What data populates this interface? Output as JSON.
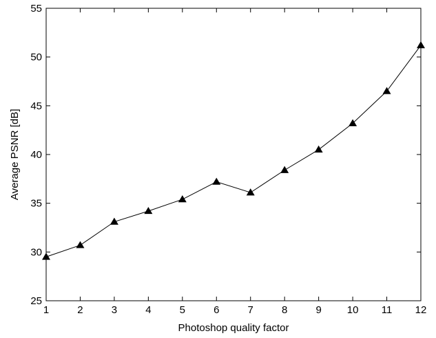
{
  "chart_data": {
    "type": "line",
    "title": "",
    "xlabel": "Photoshop quality factor",
    "ylabel": "Average PSNR [dB]",
    "xlim": [
      1,
      12
    ],
    "ylim": [
      25,
      55
    ],
    "x_ticks": [
      1,
      2,
      3,
      4,
      5,
      6,
      7,
      8,
      9,
      10,
      11,
      12
    ],
    "y_ticks": [
      25,
      30,
      35,
      40,
      45,
      50,
      55
    ],
    "grid": false,
    "legend": "none",
    "marker": "triangle",
    "line_color": "#000000",
    "series": [
      {
        "x": [
          1,
          2,
          3,
          4,
          5,
          6,
          7,
          8,
          9,
          10,
          11,
          12
        ],
        "values": [
          29.5,
          30.7,
          33.1,
          34.2,
          35.4,
          37.2,
          36.1,
          38.4,
          40.5,
          43.2,
          46.5,
          51.2
        ]
      }
    ]
  }
}
